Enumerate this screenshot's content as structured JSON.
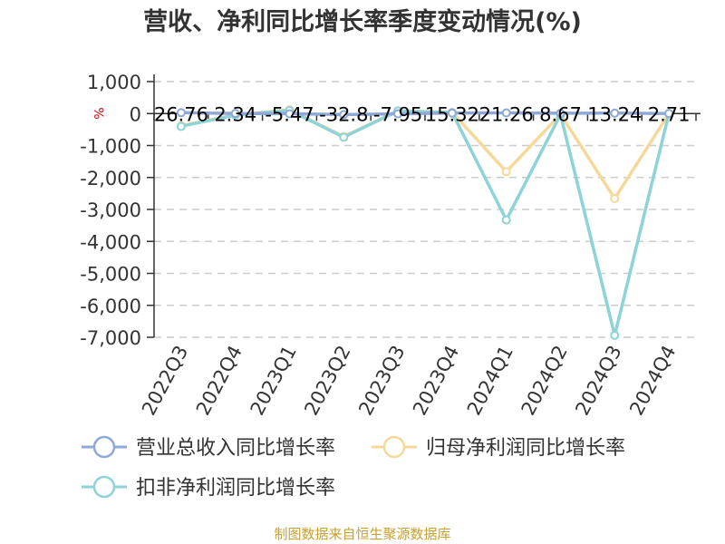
{
  "title": "营收、净利同比增长率季度变动情况(%)",
  "unit_label": "%",
  "source": "制图数据来自恒生聚源数据库",
  "chart_data": {
    "type": "line",
    "title": "营收、净利同比增长率季度变动情况(%)",
    "xlabel": "",
    "ylabel": "%",
    "categories": [
      "2022Q3",
      "2022Q4",
      "2023Q1",
      "2023Q2",
      "2023Q3",
      "2023Q4",
      "2024Q1",
      "2024Q2",
      "2024Q3",
      "2024Q4"
    ],
    "ylim": [
      -7000,
      1000
    ],
    "yticks": [
      1000,
      0,
      -1000,
      -2000,
      -3000,
      -4000,
      -5000,
      -6000,
      -7000
    ],
    "ytick_labels": [
      "1,000",
      "0",
      "-1,000",
      "-2,000",
      "-3,000",
      "-4,000",
      "-5,000",
      "-6,000",
      "-7,000"
    ],
    "grid": true,
    "legend_position": "bottom",
    "series": [
      {
        "name": "营业总收入同比增长率",
        "color": "#8fa9d6",
        "values": [
          26.76,
          2.34,
          -5.47,
          -32.8,
          -7.95,
          15.32,
          21.26,
          8.67,
          13.24,
          2.71
        ],
        "labels": [
          "26.76",
          "2.34",
          "-5.47",
          "-32.8",
          "-7.95",
          "15.32",
          "21.26",
          "8.67",
          "13.24",
          "2.71"
        ]
      },
      {
        "name": "归母净利润同比增长率",
        "color": "#f5d99a",
        "values": [
          -380,
          -40,
          120,
          -720,
          90,
          40,
          -1820,
          -20,
          -2660,
          0
        ]
      },
      {
        "name": "扣非净利润同比增长率",
        "color": "#8dd3d8",
        "values": [
          -400,
          -50,
          100,
          -740,
          80,
          30,
          -3330,
          -30,
          -6940,
          0
        ]
      }
    ]
  }
}
